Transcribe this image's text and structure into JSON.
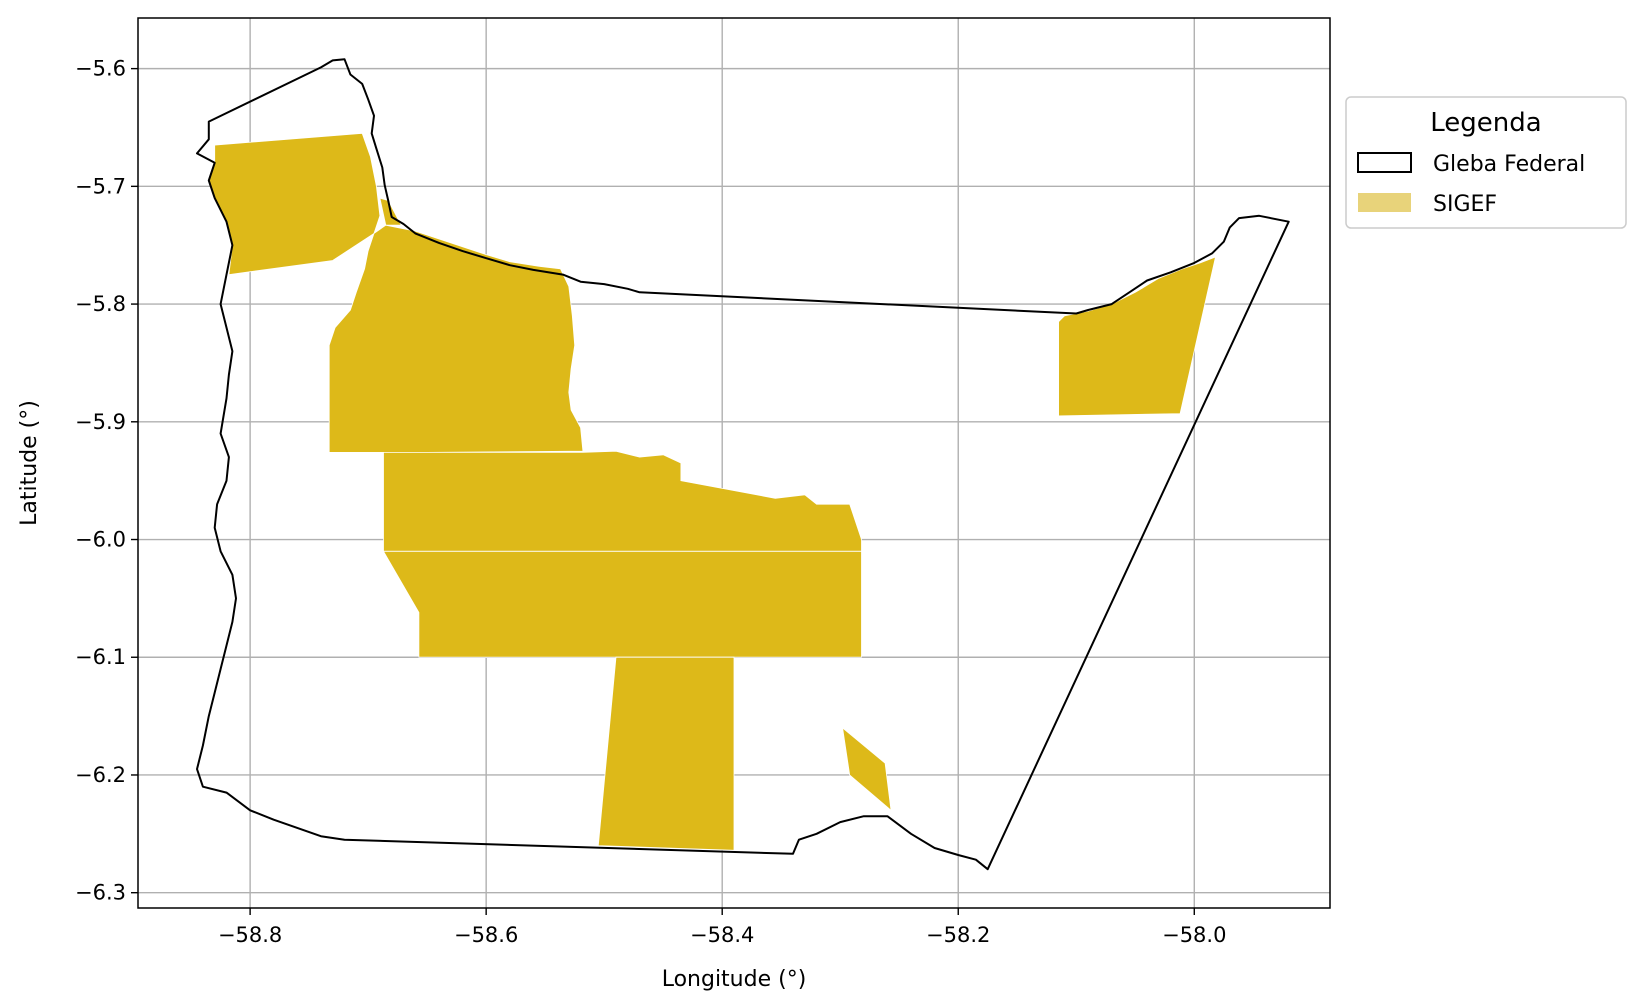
{
  "chart_data": {
    "type": "map",
    "xlabel": "Longitude (°)",
    "ylabel": "Latitude (°)",
    "xlim": [
      -58.895,
      -57.885
    ],
    "ylim": [
      -6.313,
      -5.557
    ],
    "grid": true,
    "x_ticks": [
      -58.8,
      -58.6,
      -58.4,
      -58.2,
      -58.0
    ],
    "y_ticks": [
      -5.6,
      -5.7,
      -5.8,
      -5.9,
      -6.0,
      -6.1,
      -6.2,
      -6.3
    ],
    "x_tick_labels": [
      "−58.8",
      "−58.6",
      "−58.4",
      "−58.2",
      "−58.0"
    ],
    "y_tick_labels": [
      "−5.6",
      "−5.7",
      "−5.8",
      "−5.9",
      "−6.0",
      "−6.1",
      "−6.2",
      "−6.3"
    ],
    "legend": {
      "title": "Legenda",
      "placement": "outside-right-top",
      "entries": [
        {
          "label": "Gleba Federal",
          "style": "outline",
          "color": "#000000"
        },
        {
          "label": "SIGEF",
          "style": "fill",
          "color": "#DDB919"
        }
      ]
    },
    "colors": {
      "gleba_outline": "#000000",
      "sigef_fill": "#DDB919",
      "sigef_legend": "#E8D37A",
      "grid": "#b0b0b0"
    },
    "gleba_federal": [
      [
        -58.835,
        -5.645
      ],
      [
        -58.74,
        -5.599
      ],
      [
        -58.73,
        -5.593
      ],
      [
        -58.72,
        -5.592
      ],
      [
        -58.715,
        -5.605
      ],
      [
        -58.705,
        -5.613
      ],
      [
        -58.7,
        -5.626
      ],
      [
        -58.695,
        -5.64
      ],
      [
        -58.697,
        -5.655
      ],
      [
        -58.693,
        -5.668
      ],
      [
        -58.688,
        -5.684
      ],
      [
        -58.686,
        -5.699
      ],
      [
        -58.683,
        -5.712
      ],
      [
        -58.68,
        -5.726
      ],
      [
        -58.67,
        -5.732
      ],
      [
        -58.66,
        -5.74
      ],
      [
        -58.64,
        -5.748
      ],
      [
        -58.62,
        -5.755
      ],
      [
        -58.6,
        -5.761
      ],
      [
        -58.58,
        -5.767
      ],
      [
        -58.56,
        -5.771
      ],
      [
        -58.535,
        -5.775
      ],
      [
        -58.52,
        -5.781
      ],
      [
        -58.5,
        -5.783
      ],
      [
        -58.48,
        -5.787
      ],
      [
        -58.47,
        -5.79
      ],
      [
        -58.1,
        -5.808
      ],
      [
        -58.09,
        -5.805
      ],
      [
        -58.07,
        -5.8
      ],
      [
        -58.055,
        -5.79
      ],
      [
        -58.04,
        -5.78
      ],
      [
        -58.02,
        -5.773
      ],
      [
        -58.0,
        -5.765
      ],
      [
        -57.985,
        -5.757
      ],
      [
        -57.975,
        -5.747
      ],
      [
        -57.97,
        -5.735
      ],
      [
        -57.962,
        -5.727
      ],
      [
        -57.945,
        -5.725
      ],
      [
        -57.92,
        -5.73
      ],
      [
        -58.175,
        -6.28
      ],
      [
        -58.185,
        -6.272
      ],
      [
        -58.2,
        -6.268
      ],
      [
        -58.22,
        -6.262
      ],
      [
        -58.24,
        -6.25
      ],
      [
        -58.26,
        -6.235
      ],
      [
        -58.28,
        -6.235
      ],
      [
        -58.3,
        -6.24
      ],
      [
        -58.32,
        -6.25
      ],
      [
        -58.335,
        -6.255
      ],
      [
        -58.34,
        -6.267
      ],
      [
        -58.72,
        -6.255
      ],
      [
        -58.74,
        -6.252
      ],
      [
        -58.76,
        -6.245
      ],
      [
        -58.78,
        -6.238
      ],
      [
        -58.8,
        -6.23
      ],
      [
        -58.82,
        -6.215
      ],
      [
        -58.84,
        -6.21
      ],
      [
        -58.845,
        -6.195
      ],
      [
        -58.84,
        -6.175
      ],
      [
        -58.835,
        -6.15
      ],
      [
        -58.83,
        -6.13
      ],
      [
        -58.825,
        -6.11
      ],
      [
        -58.82,
        -6.09
      ],
      [
        -58.815,
        -6.07
      ],
      [
        -58.812,
        -6.05
      ],
      [
        -58.815,
        -6.03
      ],
      [
        -58.825,
        -6.01
      ],
      [
        -58.83,
        -5.99
      ],
      [
        -58.828,
        -5.97
      ],
      [
        -58.82,
        -5.95
      ],
      [
        -58.818,
        -5.93
      ],
      [
        -58.825,
        -5.91
      ],
      [
        -58.82,
        -5.88
      ],
      [
        -58.818,
        -5.86
      ],
      [
        -58.815,
        -5.84
      ],
      [
        -58.82,
        -5.82
      ],
      [
        -58.825,
        -5.8
      ],
      [
        -58.82,
        -5.775
      ],
      [
        -58.815,
        -5.75
      ],
      [
        -58.82,
        -5.73
      ],
      [
        -58.83,
        -5.71
      ],
      [
        -58.835,
        -5.695
      ],
      [
        -58.83,
        -5.68
      ],
      [
        -58.845,
        -5.672
      ],
      [
        -58.835,
        -5.66
      ]
    ],
    "sigef": [
      [
        [
          -58.83,
          -5.665
        ],
        [
          -58.705,
          -5.655
        ],
        [
          -58.698,
          -5.675
        ],
        [
          -58.693,
          -5.7
        ],
        [
          -58.69,
          -5.725
        ],
        [
          -58.695,
          -5.74
        ],
        [
          -58.73,
          -5.763
        ],
        [
          -58.818,
          -5.775
        ],
        [
          -58.815,
          -5.75
        ],
        [
          -58.82,
          -5.73
        ],
        [
          -58.83,
          -5.71
        ],
        [
          -58.835,
          -5.695
        ],
        [
          -58.83,
          -5.68
        ]
      ],
      [
        [
          -58.69,
          -5.71
        ],
        [
          -58.683,
          -5.712
        ],
        [
          -58.672,
          -5.733
        ],
        [
          -58.685,
          -5.733
        ]
      ],
      [
        [
          -58.685,
          -5.733
        ],
        [
          -58.66,
          -5.738
        ],
        [
          -58.63,
          -5.748
        ],
        [
          -58.6,
          -5.758
        ],
        [
          -58.58,
          -5.764
        ],
        [
          -58.555,
          -5.768
        ],
        [
          -58.537,
          -5.77
        ],
        [
          -58.53,
          -5.785
        ],
        [
          -58.527,
          -5.81
        ],
        [
          -58.525,
          -5.835
        ],
        [
          -58.528,
          -5.855
        ],
        [
          -58.53,
          -5.875
        ],
        [
          -58.528,
          -5.89
        ],
        [
          -58.52,
          -5.905
        ],
        [
          -58.518,
          -5.925
        ],
        [
          -58.65,
          -5.926
        ],
        [
          -58.733,
          -5.926
        ],
        [
          -58.733,
          -5.835
        ],
        [
          -58.728,
          -5.82
        ],
        [
          -58.715,
          -5.805
        ],
        [
          -58.71,
          -5.79
        ],
        [
          -58.703,
          -5.77
        ],
        [
          -58.7,
          -5.755
        ],
        [
          -58.695,
          -5.74
        ]
      ],
      [
        [
          -58.687,
          -5.926
        ],
        [
          -58.518,
          -5.926
        ],
        [
          -58.49,
          -5.925
        ],
        [
          -58.47,
          -5.93
        ],
        [
          -58.45,
          -5.928
        ],
        [
          -58.435,
          -5.935
        ],
        [
          -58.435,
          -5.95
        ],
        [
          -58.355,
          -5.965
        ],
        [
          -58.33,
          -5.962
        ],
        [
          -58.32,
          -5.97
        ],
        [
          -58.292,
          -5.97
        ],
        [
          -58.282,
          -6.0
        ],
        [
          -58.282,
          -6.01
        ],
        [
          -58.687,
          -6.01
        ]
      ],
      [
        [
          -58.687,
          -6.01
        ],
        [
          -58.282,
          -6.01
        ],
        [
          -58.282,
          -6.1
        ],
        [
          -58.657,
          -6.1
        ],
        [
          -58.657,
          -6.062
        ]
      ],
      [
        [
          -58.49,
          -6.1
        ],
        [
          -58.39,
          -6.1
        ],
        [
          -58.39,
          -6.264
        ],
        [
          -58.505,
          -6.26
        ]
      ],
      [
        [
          -58.298,
          -6.16
        ],
        [
          -58.262,
          -6.19
        ],
        [
          -58.257,
          -6.23
        ],
        [
          -58.292,
          -6.2
        ]
      ],
      [
        [
          -58.115,
          -5.815
        ],
        [
          -58.11,
          -5.81
        ],
        [
          -58.09,
          -5.806
        ],
        [
          -58.07,
          -5.8
        ],
        [
          -58.05,
          -5.79
        ],
        [
          -58.03,
          -5.778
        ],
        [
          -58.01,
          -5.77
        ],
        [
          -57.995,
          -5.765
        ],
        [
          -57.982,
          -5.76
        ],
        [
          -58.012,
          -5.893
        ],
        [
          -58.115,
          -5.895
        ]
      ]
    ]
  }
}
